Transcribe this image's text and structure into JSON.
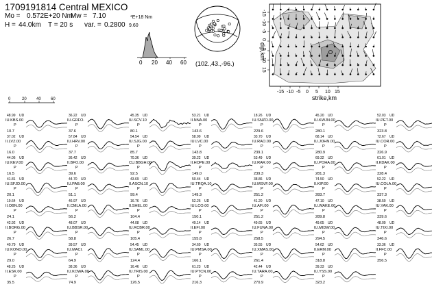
{
  "header": {
    "title": "1709191814 Central MEXICO",
    "mo_label": "Mo =",
    "mo_value": "0.572E+20 Nm",
    "mw_label": "Mw =",
    "mw_value": "7.10",
    "h_label": "H =",
    "h_value": "44.0km",
    "t_label": "T = 20 s",
    "var_label": "var. =",
    "var_value": "0.2800",
    "var_extra": "9.60",
    "units_note": "*E+18 Nm"
  },
  "stf_axis": {
    "ticks": [
      "0",
      "20",
      "40",
      "60"
    ]
  },
  "mechanism": {
    "label": "(102.,43.,-96.)"
  },
  "slipmap": {
    "xlabel": "strike,km",
    "ylabel": "dip,km",
    "xticks": [
      "-15",
      "-10",
      "-5",
      "0",
      "5",
      "10",
      "15"
    ],
    "yticks": [
      "-15",
      "-10",
      "-5",
      "0",
      "5",
      "10",
      "15"
    ]
  },
  "waveform_scale": {
    "ticks": [
      "0",
      "20",
      "40",
      "60"
    ]
  },
  "stations": [
    {
      "amp": "48.99",
      "comp": "UD",
      "name": "IU.KBS.00",
      "phase": "P",
      "az": "10.7"
    },
    {
      "amp": "37.02",
      "comp": "UD",
      "name": "II.LVZ.00",
      "phase": "P",
      "az": "16.0"
    },
    {
      "amp": "44.06",
      "comp": "UD",
      "name": "IU.KEV.00",
      "phase": "P",
      "az": "16.5"
    },
    {
      "amp": "41.81",
      "comp": "UD",
      "name": "IU.SFJD.00",
      "phase": "P",
      "az": "20.1"
    },
    {
      "amp": "19.64",
      "comp": "UD",
      "name": "II.OBN.00",
      "phase": "P",
      "az": "24.1"
    },
    {
      "amp": "42.92",
      "comp": "UD",
      "name": "II.BORG.00",
      "phase": "P",
      "az": "26.7"
    },
    {
      "amp": "40.79",
      "comp": "UD",
      "name": "IU.KONO.00",
      "phase": "P",
      "az": "29.0"
    },
    {
      "amp": "48.25",
      "comp": "UD",
      "name": "II.ESK.00",
      "phase": "P",
      "az": "35.5"
    },
    {
      "amp": "36.22",
      "comp": "UD",
      "name": "IU.GRFO.",
      "phase": "P",
      "az": "37.6"
    },
    {
      "amp": "57.84",
      "comp": "UD",
      "name": "IU.HRV.00",
      "phase": "P",
      "az": "37.7"
    },
    {
      "amp": "36.42",
      "comp": "UD",
      "name": "II.BFO.00",
      "phase": "P",
      "az": "39.6"
    },
    {
      "amp": "44.70",
      "comp": "UD",
      "name": "IU.PAB.00",
      "phase": "P",
      "az": "51.1"
    },
    {
      "amp": "46.97",
      "comp": "UD",
      "name": "II.CMLA.00",
      "phase": "P",
      "az": "56.2"
    },
    {
      "amp": "48.07",
      "comp": "UD",
      "name": "IU.BBSR.00",
      "phase": "P",
      "az": "58.8"
    },
    {
      "amp": "39.57",
      "comp": "UD",
      "name": "IU.MACI.",
      "phase": "P",
      "az": "64.9"
    },
    {
      "amp": "38.36",
      "comp": "UD",
      "name": "IU.KOWA.00",
      "phase": "P",
      "az": "74.9"
    },
    {
      "amp": "45.35",
      "comp": "UD",
      "name": "IU.SCV.10",
      "phase": "P",
      "az": "80.1"
    },
    {
      "amp": "54.54",
      "comp": "UD",
      "name": "IU.SJG.00",
      "phase": "P",
      "az": "85.7"
    },
    {
      "amp": "70.36",
      "comp": "UD",
      "name": "CU.BBGH.00",
      "phase": "P",
      "az": "92.5"
    },
    {
      "amp": "43.69",
      "comp": "UD",
      "name": "II.ASCN.10",
      "phase": "P",
      "az": "99.4"
    },
    {
      "amp": "16.76",
      "comp": "UD",
      "name": "II.SHEL.00",
      "phase": "P",
      "az": "104.4"
    },
    {
      "amp": "44.08",
      "comp": "UD",
      "name": "IU.RCBR.00",
      "phase": "P",
      "az": "105.4"
    },
    {
      "amp": "54.45",
      "comp": "UD",
      "name": "IU.SAML.00",
      "phase": "P",
      "az": "124.4"
    },
    {
      "amp": "16.46",
      "comp": "UD",
      "name": "IU.TRIS.00",
      "phase": "P",
      "az": "126.5"
    },
    {
      "amp": "53.21",
      "comp": "UD",
      "name": "II.NNA.00",
      "phase": "P",
      "az": "143.6"
    },
    {
      "amp": "58.99",
      "comp": "UD",
      "name": "IU.LVC.00",
      "phase": "P",
      "az": "143.8"
    },
    {
      "amp": "39.22",
      "comp": "UD",
      "name": "II.HOPE.00",
      "phase": "P",
      "az": "149.0"
    },
    {
      "amp": "50.44",
      "comp": "UD",
      "name": "IU.TRQA.10",
      "phase": "P",
      "az": "149.3"
    },
    {
      "amp": "52.26",
      "comp": "UD",
      "name": "IU.LCO.00",
      "phase": "P",
      "az": "150.1"
    },
    {
      "amp": "49.14",
      "comp": "UD",
      "name": "II.EFI.00",
      "phase": "P",
      "az": "155.8"
    },
    {
      "amp": "34.60",
      "comp": "UD",
      "name": "IU.PMSA.00",
      "phase": "P",
      "az": "166.1"
    },
    {
      "amp": "61.23",
      "comp": "UD",
      "name": "IU.PTCN.00",
      "phase": "P",
      "az": "216.3"
    },
    {
      "amp": "18.26",
      "comp": "UD",
      "name": "IU.SNZO.00",
      "phase": "P",
      "az": "229.6"
    },
    {
      "amp": "33.70",
      "comp": "UD",
      "name": "IU.RAO.00",
      "phase": "P",
      "az": "239.1"
    },
    {
      "amp": "53.49",
      "comp": "UD",
      "name": "IU.RAR.00",
      "phase": "P",
      "az": "239.3"
    },
    {
      "amp": "38.86",
      "comp": "UD",
      "name": "IU.MSVF.00",
      "phase": "P",
      "az": "251.2"
    },
    {
      "amp": "41.20",
      "comp": "UD",
      "name": "IU.AFI.00",
      "phase": "P",
      "az": "251.2"
    },
    {
      "amp": "49.65",
      "comp": "UD",
      "name": "IU.FUNA.00",
      "phase": "P",
      "az": "258.5"
    },
    {
      "amp": "35.55",
      "comp": "UD",
      "name": "IU.XMAS.00",
      "phase": "P",
      "az": "261.4"
    },
    {
      "amp": "42.44",
      "comp": "UD",
      "name": "IU.TARA.00",
      "phase": "P",
      "az": "270.9"
    },
    {
      "amp": "45.20",
      "comp": "UD",
      "name": "IU.KWJN.00",
      "phase": "P",
      "az": "280.1"
    },
    {
      "amp": "68.14",
      "comp": "UD",
      "name": "IU.JOHN.00",
      "phase": "P",
      "az": "280.9"
    },
    {
      "amp": "69.32",
      "comp": "UD",
      "name": "IU.POHA.00",
      "phase": "P",
      "az": "281.3"
    },
    {
      "amp": "74.50",
      "comp": "UD",
      "name": "II.KIP.00",
      "phase": "P",
      "az": "283.7"
    },
    {
      "amp": "47.10",
      "comp": "UD",
      "name": "IU.WAKE.00",
      "phase": "P",
      "az": "289.8"
    },
    {
      "amp": "49.65",
      "comp": "UD",
      "name": "IU.MIDW.00",
      "phase": "P",
      "az": "294.5"
    },
    {
      "amp": "54.62",
      "comp": "UD",
      "name": "II.ERM.00",
      "phase": "P",
      "az": "318.8"
    },
    {
      "amp": "39.33",
      "comp": "UD",
      "name": "IU.YSS.00",
      "phase": "P",
      "az": "323.2"
    },
    {
      "amp": "52.03",
      "comp": "UD",
      "name": "IU.PET.00",
      "phase": "P",
      "az": "323.8"
    },
    {
      "amp": "72.67",
      "comp": "UD",
      "name": "IU.COR.00",
      "phase": "P",
      "az": "326.9"
    },
    {
      "amp": "61.01",
      "comp": "UD",
      "name": "II.KDAK.00",
      "phase": "P",
      "az": "328.4"
    },
    {
      "amp": "52.22",
      "comp": "UD",
      "name": "IU.COLA.00",
      "phase": "P",
      "az": "337.3"
    },
    {
      "amp": "38.59",
      "comp": "UD",
      "name": "IU.YAK.00",
      "phase": "P",
      "az": "339.6"
    },
    {
      "amp": "48.09",
      "comp": "UD",
      "name": "IU.TIXI.00",
      "phase": "P",
      "az": "346.6"
    },
    {
      "amp": "33.36",
      "comp": "UD",
      "name": "II.FFC.00",
      "phase": "P",
      "az": "356.5"
    }
  ]
}
